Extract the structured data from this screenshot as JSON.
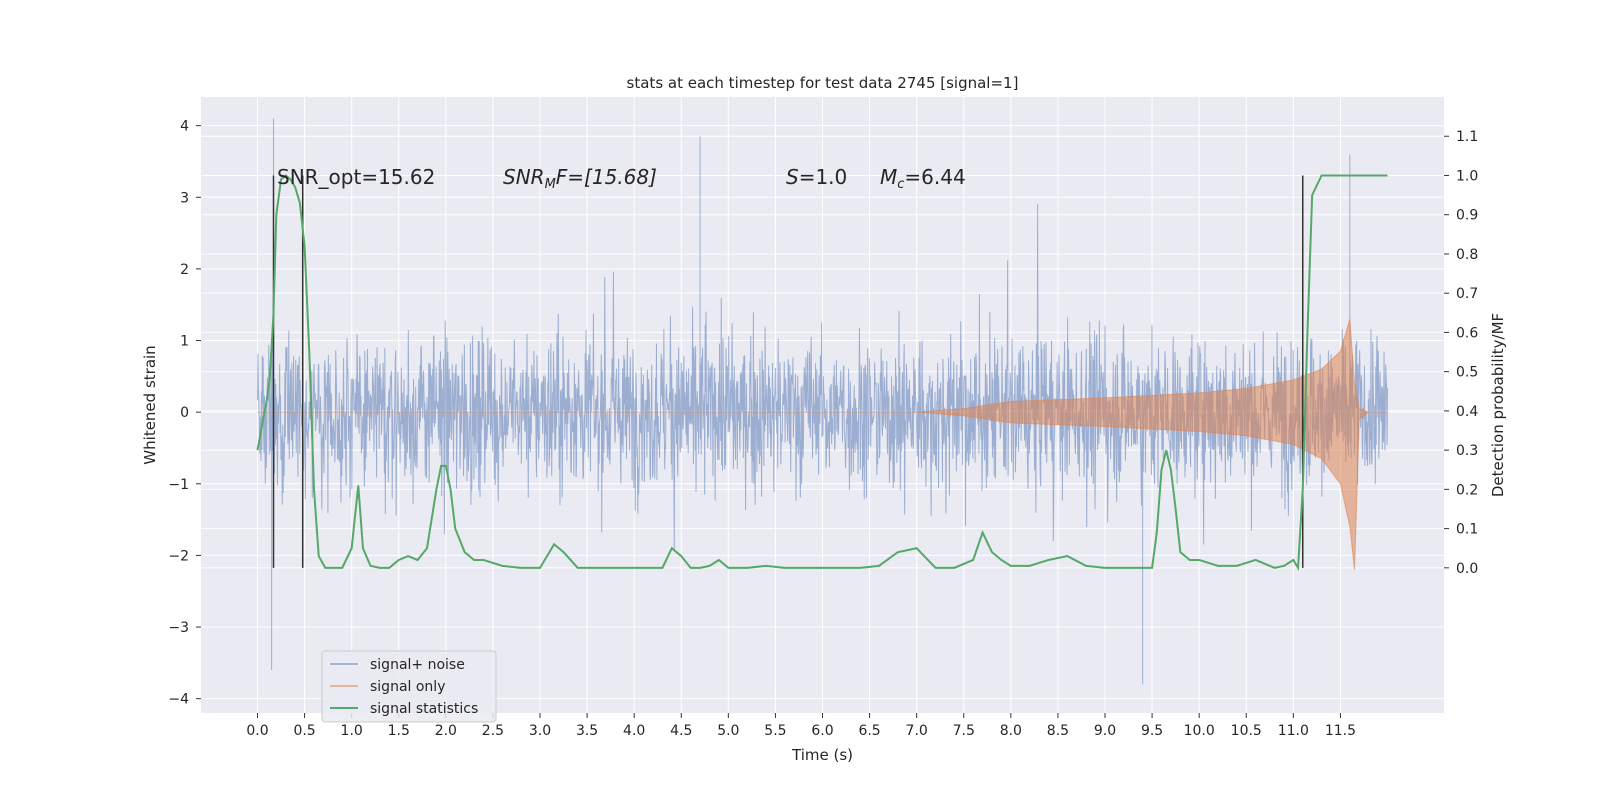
{
  "chart_data": {
    "type": "line",
    "title": "stats at each timestep for test data 2745 [signal=1]",
    "xlabel": "Time (s)",
    "ylabel": "Whitened strain",
    "ylabel_right": "Detection probability/MF",
    "xlim": [
      -0.6,
      12.6
    ],
    "ylim": [
      -4.2,
      4.4
    ],
    "ylim_right": [
      -0.37,
      1.2
    ],
    "x_ticks": [
      "0.0",
      "0.5",
      "1.0",
      "1.5",
      "2.0",
      "2.5",
      "3.0",
      "3.5",
      "4.0",
      "4.5",
      "5.0",
      "5.5",
      "6.0",
      "6.5",
      "7.0",
      "7.5",
      "8.0",
      "8.5",
      "9.0",
      "9.5",
      "10.0",
      "10.5",
      "11.0",
      "11.5"
    ],
    "y_ticks": [
      "4",
      "3",
      "2",
      "1",
      "0",
      "−1",
      "−2",
      "−3",
      "−4"
    ],
    "y_ticks_right": [
      "1.1",
      "1.0",
      "0.9",
      "0.8",
      "0.7",
      "0.6",
      "0.5",
      "0.4",
      "0.3",
      "0.2",
      "0.1",
      "0.0"
    ],
    "grid": true,
    "legend_position": "lower-left",
    "annotations": {
      "snr_opt": "SNR_opt=15.62",
      "snr_mf_main": "SNR",
      "snr_mf_sub": "M",
      "snr_mf_tail": "F=[15.68]",
      "s_main": "S",
      "s_tail": "=1.0",
      "mc_main": "M",
      "mc_sub": "c",
      "mc_tail": "=6.44"
    },
    "colors": {
      "signal_noise": "#4c72b0",
      "signal_only": "#dd8452",
      "signal_statistics": "#55a868",
      "background": "#eaeaf2",
      "vlines": "#333333"
    },
    "series": [
      {
        "name": "signal+ noise",
        "description_level": "noisy strain, typical envelope",
        "x_range": [
          0.0,
          12.0
        ],
        "envelope_bands": [
          [
            -1.7,
            1.4
          ],
          [
            -2.3,
            2.1
          ]
        ],
        "extreme_peaks": [
          [
            0.17,
            4.1
          ],
          [
            0.15,
            -3.6
          ],
          [
            4.7,
            3.85
          ],
          [
            9.4,
            -3.8
          ],
          [
            11.6,
            3.6
          ]
        ]
      },
      {
        "name": "signal only",
        "x": [
          0.0,
          7.0,
          7.5,
          8.0,
          9.0,
          10.0,
          10.5,
          11.0,
          11.3,
          11.5,
          11.6,
          11.65,
          11.7,
          11.8,
          12.0
        ],
        "upper": [
          0.0,
          0.0,
          0.05,
          0.15,
          0.2,
          0.27,
          0.33,
          0.45,
          0.6,
          0.85,
          1.3,
          0.4,
          0.05,
          0.0,
          0.0
        ],
        "lower": [
          0.0,
          0.0,
          -0.05,
          -0.15,
          -0.2,
          -0.27,
          -0.33,
          -0.45,
          -0.65,
          -1.0,
          -1.6,
          -2.2,
          -0.1,
          0.0,
          0.0
        ]
      },
      {
        "name": "signal statistics",
        "x": [
          0.0,
          0.1,
          0.13,
          0.17,
          0.2,
          0.25,
          0.3,
          0.35,
          0.4,
          0.45,
          0.5,
          0.55,
          0.6,
          0.65,
          0.72,
          0.8,
          0.9,
          1.0,
          1.07,
          1.12,
          1.2,
          1.3,
          1.4,
          1.5,
          1.6,
          1.7,
          1.8,
          1.9,
          1.95,
          2.0,
          2.05,
          2.1,
          2.2,
          2.3,
          2.4,
          2.6,
          2.8,
          3.0,
          3.05,
          3.15,
          3.25,
          3.4,
          3.6,
          3.8,
          4.0,
          4.3,
          4.4,
          4.5,
          4.6,
          4.7,
          4.8,
          4.9,
          5.0,
          5.2,
          5.4,
          5.6,
          5.8,
          6.0,
          6.2,
          6.4,
          6.6,
          6.8,
          7.0,
          7.2,
          7.4,
          7.6,
          7.7,
          7.8,
          7.9,
          8.0,
          8.2,
          8.4,
          8.6,
          8.8,
          9.0,
          9.2,
          9.4,
          9.5,
          9.55,
          9.6,
          9.65,
          9.7,
          9.75,
          9.8,
          9.9,
          10.0,
          10.2,
          10.4,
          10.6,
          10.8,
          10.9,
          11.0,
          11.05,
          11.1,
          11.15,
          11.2,
          11.3,
          11.5,
          12.0
        ],
        "values": [
          0.3,
          0.43,
          0.48,
          0.65,
          0.9,
          0.99,
          1.0,
          0.99,
          0.97,
          0.93,
          0.82,
          0.55,
          0.2,
          0.03,
          0.0,
          0.0,
          0.0,
          0.05,
          0.21,
          0.05,
          0.005,
          0.0,
          0.0,
          0.02,
          0.03,
          0.02,
          0.05,
          0.2,
          0.26,
          0.26,
          0.2,
          0.1,
          0.04,
          0.02,
          0.02,
          0.005,
          0.0,
          0.0,
          0.02,
          0.06,
          0.04,
          0.0,
          0.0,
          0.0,
          0.0,
          0.0,
          0.05,
          0.03,
          0.0,
          0.0,
          0.005,
          0.02,
          0.0,
          0.0,
          0.005,
          0.0,
          0.0,
          0.0,
          0.0,
          0.0,
          0.005,
          0.04,
          0.05,
          0.0,
          0.0,
          0.02,
          0.09,
          0.04,
          0.02,
          0.005,
          0.005,
          0.02,
          0.03,
          0.005,
          0.0,
          0.0,
          0.0,
          0.0,
          0.09,
          0.25,
          0.3,
          0.25,
          0.15,
          0.04,
          0.02,
          0.02,
          0.005,
          0.005,
          0.02,
          0.0,
          0.005,
          0.02,
          0.0,
          0.2,
          0.6,
          0.95,
          1.0,
          1.0,
          1.0
        ]
      }
    ],
    "vertical_lines": [
      {
        "x": 0.17,
        "y_right_range": [
          0.0,
          1.0
        ]
      },
      {
        "x": 0.48,
        "y_right_range": [
          0.0,
          1.0
        ]
      },
      {
        "x": 11.1,
        "y_right_range": [
          0.0,
          1.0
        ]
      }
    ]
  }
}
